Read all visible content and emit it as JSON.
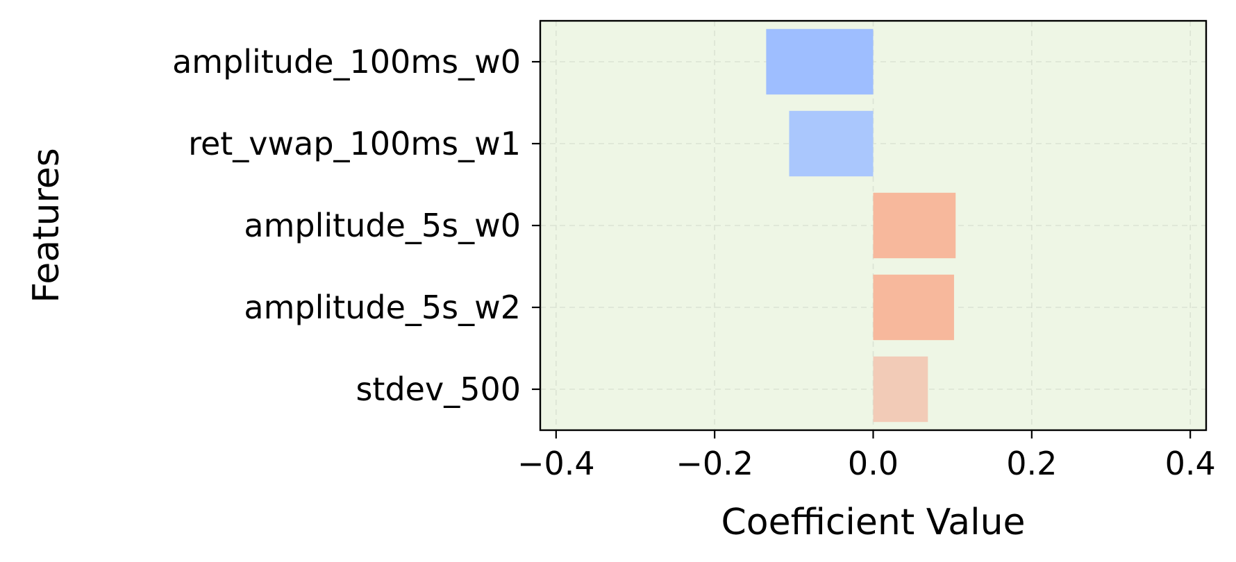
{
  "chart_data": {
    "type": "bar",
    "orientation": "horizontal",
    "categories": [
      "stdev_500",
      "amplitude_5s_w2",
      "amplitude_5s_w0",
      "ret_vwap_100ms_w1",
      "amplitude_100ms_w0"
    ],
    "values": [
      0.069,
      0.102,
      0.104,
      -0.106,
      -0.135
    ],
    "bar_colors": [
      "#f2cbb7",
      "#f7b89c",
      "#f7b89c",
      "#aac7fd",
      "#9ebeff"
    ],
    "xlabel": "Coefficient Value",
    "ylabel": "Features",
    "xlim": [
      -0.42,
      0.42
    ],
    "xticks": [
      -0.4,
      -0.2,
      0.0,
      0.2,
      0.4
    ],
    "xtick_labels": [
      "−0.4",
      "−0.2",
      "0.0",
      "0.2",
      "0.4"
    ],
    "grid": true,
    "plot_background": "#eef6e5"
  }
}
